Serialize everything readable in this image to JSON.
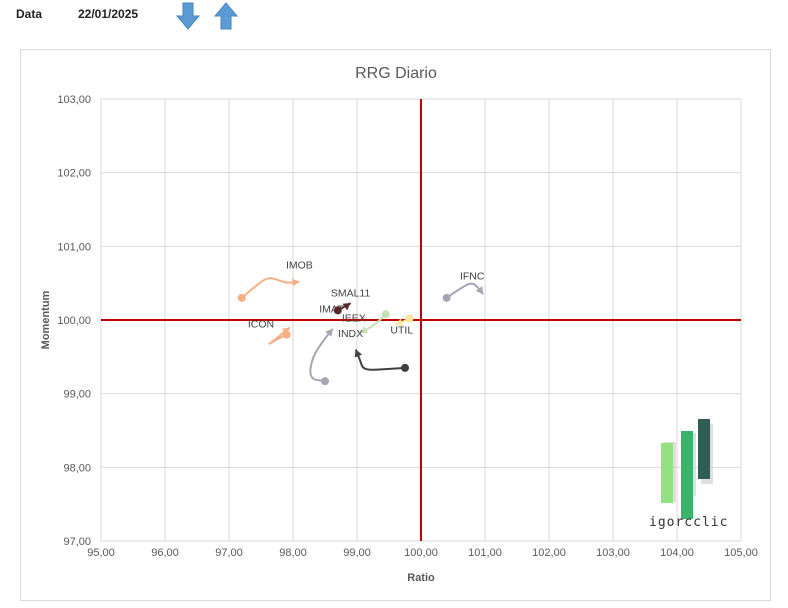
{
  "header": {
    "date_label": "Data",
    "date_value": "22/01/2025"
  },
  "controls": {
    "down_icon": "arrow-down-icon",
    "up_icon": "arrow-up-icon",
    "arrow_color": "#5b9bd5"
  },
  "chart_data": {
    "type": "scatter",
    "title": "RRG Diario",
    "xlabel": "Ratio",
    "ylabel": "Momentum",
    "xlim": [
      95,
      105
    ],
    "ylim": [
      97,
      103
    ],
    "x_ticks": [
      "95,00",
      "96,00",
      "97,00",
      "98,00",
      "99,00",
      "100,00",
      "101,00",
      "102,00",
      "103,00",
      "104,00",
      "105,00"
    ],
    "y_ticks": [
      "97,00",
      "98,00",
      "99,00",
      "100,00",
      "101,00",
      "102,00",
      "103,00"
    ],
    "grid": true,
    "crosshair": {
      "x": 100,
      "y": 100,
      "color": "#c00000"
    },
    "series": [
      {
        "name": "IMOB",
        "color": "#f4b183",
        "marker": "start",
        "points": [
          [
            97.2,
            100.3
          ],
          [
            97.4,
            100.45
          ],
          [
            97.6,
            100.58
          ],
          [
            97.75,
            100.55
          ],
          [
            97.9,
            100.5
          ],
          [
            98.1,
            100.52
          ]
        ],
        "label_at": [
          98.1,
          100.7
        ]
      },
      {
        "name": "ICON",
        "color": "#f4b183",
        "marker": "start",
        "points": [
          [
            97.9,
            99.8
          ],
          [
            97.75,
            99.74
          ],
          [
            97.6,
            99.66
          ],
          [
            97.7,
            99.72
          ],
          [
            97.95,
            99.9
          ]
        ],
        "label_at": [
          97.5,
          99.9
        ]
      },
      {
        "name": "IMAT",
        "color": "#a5a5b5",
        "marker": "start",
        "points": [
          [
            98.5,
            99.17
          ],
          [
            98.25,
            99.2
          ],
          [
            98.3,
            99.5
          ],
          [
            98.5,
            99.75
          ],
          [
            98.62,
            99.88
          ]
        ],
        "label_at": [
          98.6,
          100.1
        ]
      },
      {
        "name": "SMAL11",
        "color": "#5a2a2a",
        "marker": "start",
        "points": [
          [
            98.7,
            100.13
          ],
          [
            98.8,
            100.18
          ],
          [
            98.85,
            100.2
          ],
          [
            98.9,
            100.23
          ]
        ],
        "label_at": [
          98.9,
          100.32
        ]
      },
      {
        "name": "IEEX",
        "color": "#c5e0b4",
        "marker": "start",
        "points": [
          [
            99.45,
            100.08
          ],
          [
            99.3,
            99.95
          ],
          [
            99.15,
            99.87
          ],
          [
            99.05,
            99.82
          ]
        ],
        "label_at": [
          98.95,
          99.98
        ]
      },
      {
        "name": "INDX",
        "color": "#404040",
        "marker": "start",
        "points": [
          [
            99.75,
            99.35
          ],
          [
            99.4,
            99.33
          ],
          [
            99.1,
            99.32
          ],
          [
            99.05,
            99.45
          ],
          [
            98.98,
            99.6
          ]
        ],
        "label_at": [
          98.9,
          99.77
        ]
      },
      {
        "name": "UTIL",
        "color": "#ffe699",
        "marker": "start",
        "points": [
          [
            99.82,
            100.02
          ],
          [
            99.7,
            99.97
          ],
          [
            99.6,
            99.94
          ]
        ],
        "label_at": [
          99.7,
          99.82
        ]
      },
      {
        "name": "IFNC",
        "color": "#a5a5b5",
        "marker": "start",
        "points": [
          [
            100.4,
            100.3
          ],
          [
            100.6,
            100.42
          ],
          [
            100.8,
            100.52
          ],
          [
            100.93,
            100.4
          ],
          [
            100.97,
            100.35
          ]
        ],
        "label_at": [
          100.8,
          100.55
        ]
      }
    ]
  },
  "logo": {
    "text": "igorcclic",
    "bar_colors": [
      "#92e27f",
      "#3cb36b",
      "#2f5e57"
    ]
  }
}
